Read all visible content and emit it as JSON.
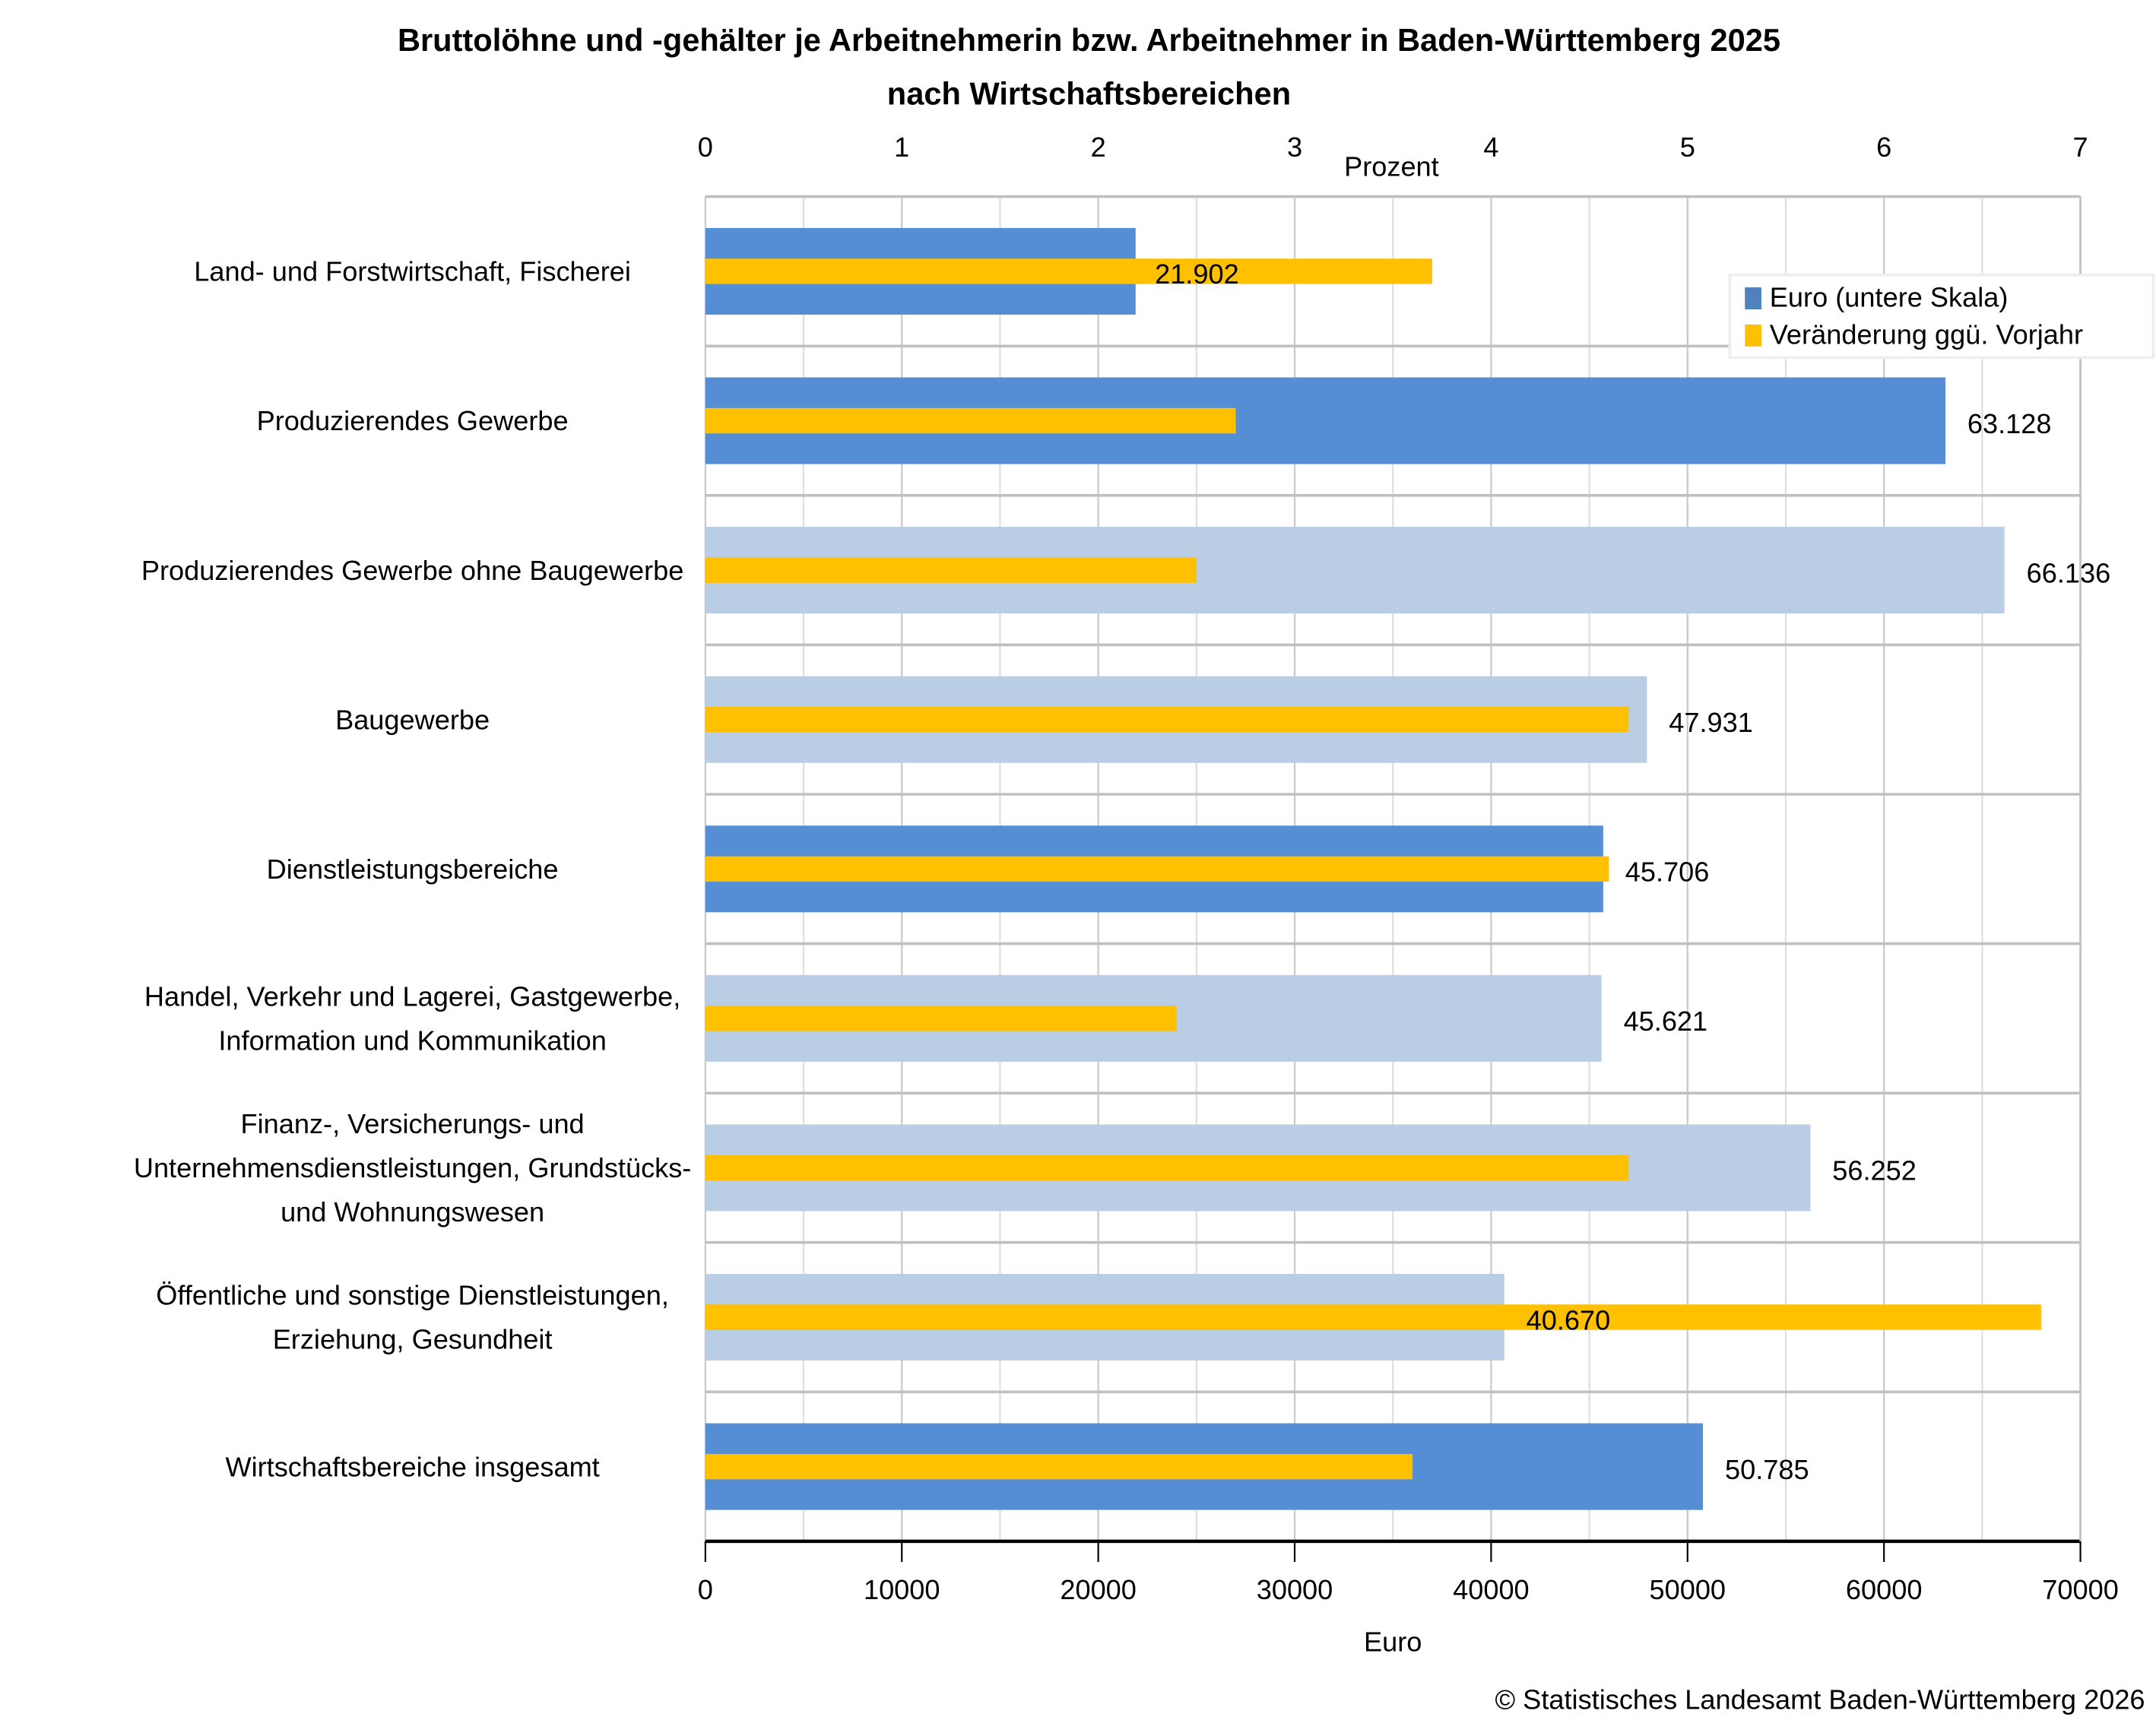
{
  "title_line1": "Bruttolöhne und -gehälter je Arbeitnehmerin bzw. Arbeitnehmer in Baden-Württemberg 2025",
  "title_line2": "nach Wirtschaftsbereichen",
  "copyright": "© Statistisches Landesamt Baden-Württemberg 2026",
  "legend": {
    "euro": "Euro (untere Skala)",
    "change": "Veränderung ggü. Vorjahr"
  },
  "colors": {
    "euro_main": "#558ed5",
    "euro_sub": "#b9cde5",
    "change": "#ffc000",
    "grid": "#d9d9d9",
    "group_sep": "#c0c0c0"
  },
  "chart_data": {
    "type": "bar",
    "orientation": "horizontal",
    "title": "Bruttolöhne und -gehälter je Arbeitnehmerin bzw. Arbeitnehmer in Baden-Württemberg 2025 nach Wirtschaftsbereichen",
    "categories": [
      "Land- und Forstwirtschaft, Fischerei",
      "Produzierendes Gewerbe",
      "Produzierendes Gewerbe ohne Baugewerbe",
      "Baugewerbe",
      "Dienstleistungsbereiche",
      "Handel, Verkehr und Lagerei, Gastgewerbe, Information und Kommunikation",
      "Finanz-, Versicherungs- und Unternehmensdienstleistungen, Grundstücks- und Wohnungswesen",
      "Öffentliche und sonstige Dienstleistungen, Erziehung, Gesundheit",
      "Wirtschaftsbereiche insgesamt"
    ],
    "category_lines": [
      [
        "Land- und Forstwirtschaft, Fischerei"
      ],
      [
        "Produzierendes Gewerbe"
      ],
      [
        "Produzierendes Gewerbe ohne Baugewerbe"
      ],
      [
        "Baugewerbe"
      ],
      [
        "Dienstleistungsbereiche"
      ],
      [
        "Handel, Verkehr und Lagerei, Gastgewerbe,",
        "Information und Kommunikation"
      ],
      [
        "Finanz-, Versicherungs- und",
        "Unternehmensdienstleistungen, Grundstücks-",
        "und Wohnungswesen"
      ],
      [
        "Öffentliche und sonstige Dienstleistungen,",
        "Erziehung, Gesundheit"
      ],
      [
        "Wirtschaftsbereiche insgesamt"
      ]
    ],
    "category_level": [
      "main",
      "main",
      "sub",
      "sub",
      "main",
      "sub",
      "sub",
      "sub",
      "main"
    ],
    "series": [
      {
        "name": "Euro (untere Skala)",
        "axis": "bottom",
        "values": [
          21902,
          63128,
          66136,
          47931,
          45706,
          45621,
          56252,
          40670,
          50785
        ],
        "data_labels": [
          "21.902",
          "63.128",
          "66.136",
          "47.931",
          "45.706",
          "45.621",
          "56.252",
          "40.670",
          "50.785"
        ]
      },
      {
        "name": "Veränderung ggü. Vorjahr",
        "axis": "top",
        "unit": "Prozent",
        "values": [
          3.7,
          2.7,
          2.5,
          4.7,
          4.6,
          2.4,
          4.7,
          6.8,
          3.6
        ]
      }
    ],
    "xlabel_bottom": "Euro",
    "xlabel_top": "Prozent",
    "xlim_bottom": [
      0,
      70000
    ],
    "xlim_top": [
      0,
      7
    ],
    "xticks_bottom": [
      "0",
      "10000",
      "20000",
      "30000",
      "40000",
      "50000",
      "60000",
      "70000"
    ],
    "xticks_top": [
      "0",
      "1",
      "2",
      "3",
      "4",
      "5",
      "6",
      "7"
    ],
    "grid": true,
    "legend_position": "top-right"
  }
}
